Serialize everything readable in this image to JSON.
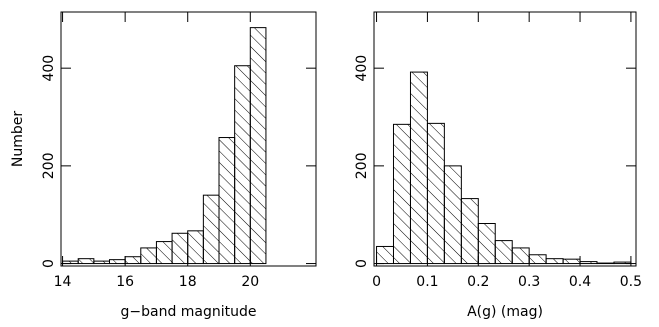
{
  "chart_data": [
    {
      "type": "histogram",
      "xlabel": "g−band magnitude",
      "ylabel": "Number",
      "bins": [
        14,
        14.5,
        15,
        15.5,
        16,
        16.5,
        17,
        17.5,
        18,
        18.5,
        19,
        19.5,
        20,
        20.5
      ],
      "values": [
        5,
        10,
        5,
        8,
        14,
        32,
        45,
        62,
        67,
        140,
        258,
        405,
        483
      ],
      "xlim": [
        13.95,
        22.1
      ],
      "ylim": [
        -5,
        515
      ],
      "xticks": [
        14,
        16,
        18,
        20
      ],
      "yticks": [
        0,
        200,
        400
      ],
      "hatch": true,
      "color": "#000000"
    },
    {
      "type": "histogram",
      "xlabel": "A(g) (mag)",
      "bins": [
        0,
        0.0333,
        0.0667,
        0.1,
        0.1333,
        0.1667,
        0.2,
        0.2333,
        0.2667,
        0.3,
        0.3333,
        0.3667,
        0.4,
        0.4333,
        0.4667,
        0.5
      ],
      "values": [
        35,
        285,
        392,
        287,
        200,
        133,
        82,
        47,
        32,
        18,
        10,
        9,
        4,
        1,
        3
      ],
      "xlim": [
        -0.005,
        0.51
      ],
      "ylim": [
        -5,
        515
      ],
      "xticks": [
        0,
        0.1,
        0.2,
        0.3,
        0.4,
        0.5
      ],
      "yticks": [
        0,
        200,
        400
      ],
      "hatch": true,
      "color": "#000000"
    }
  ]
}
